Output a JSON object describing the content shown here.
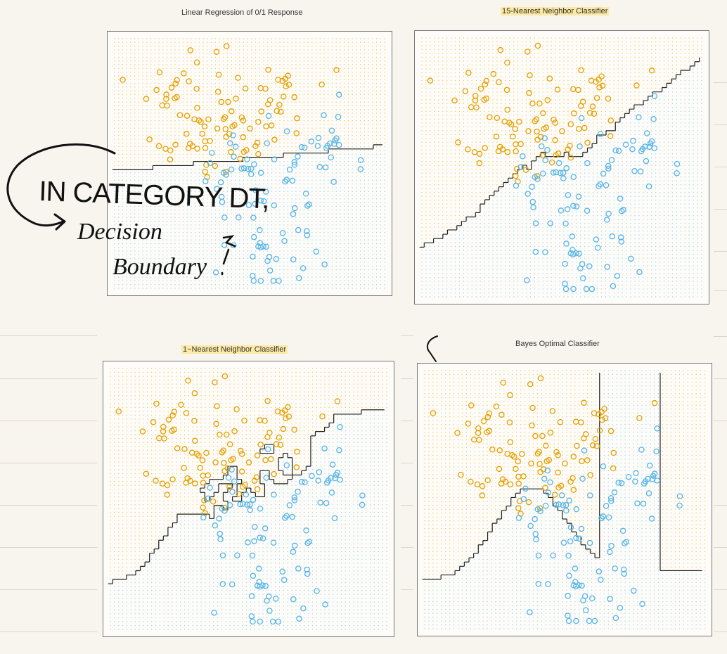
{
  "colors": {
    "orange": "#E69F00",
    "blue": "#56B4E9",
    "boundary": "#222222",
    "highlight": "#FBE9A4"
  },
  "annotation": {
    "line1": "IN CATEGORY DT,",
    "line2": "Decision",
    "line3": "Boundary"
  },
  "chart_data": [
    {
      "type": "scatter",
      "title": "Linear Regression of 0/1 Response",
      "highlighted_title": false,
      "classes": [
        "orange",
        "blue"
      ],
      "decision_boundary": "linear",
      "grid": "dotted background colored by predicted class"
    },
    {
      "type": "scatter",
      "title": "15-Nearest Neighbor Classifier",
      "highlighted_title": true,
      "classes": [
        "orange",
        "blue"
      ],
      "decision_boundary": "15-nearest neighbor (jagged)",
      "grid": "dotted background colored by predicted class"
    },
    {
      "type": "scatter",
      "title": "1−Nearest Neighbor Classifier",
      "highlighted_title": true,
      "classes": [
        "orange",
        "blue"
      ],
      "decision_boundary": "1-nearest neighbor (many islands)",
      "grid": "dotted background colored by predicted class"
    },
    {
      "type": "scatter",
      "title": "Bayes Optimal Classifier",
      "highlighted_title": false,
      "classes": [
        "orange",
        "blue"
      ],
      "decision_boundary": "smooth Bayes boundary",
      "grid": "dotted background colored by predicted class"
    }
  ]
}
